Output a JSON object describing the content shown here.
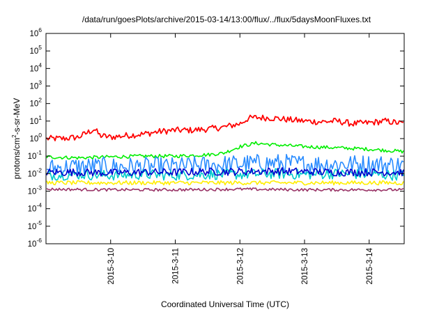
{
  "chart_data": {
    "type": "line",
    "title": "/data/run/goesPlots/archive/2015-03-14/13:00/flux/../flux/5daysMoonFluxes.txt",
    "xlabel": "Coordinated Universal Time (UTC)",
    "ylabel": "protons/cm²-s-sr-MeV",
    "ylabel_parts": {
      "pre": "protons/cm",
      "sup": "2",
      "post": "-s-sr-MeV"
    },
    "yscale": "log",
    "ylim": [
      1e-06,
      1000000.0
    ],
    "y_ticks": [
      {
        "value": 1e-06,
        "base": "10",
        "exp": "-6"
      },
      {
        "value": 1e-05,
        "base": "10",
        "exp": "-5"
      },
      {
        "value": 0.0001,
        "base": "10",
        "exp": "-4"
      },
      {
        "value": 0.001,
        "base": "10",
        "exp": "-3"
      },
      {
        "value": 0.01,
        "base": "10",
        "exp": "-2"
      },
      {
        "value": 0.1,
        "base": "10",
        "exp": "-1"
      },
      {
        "value": 1,
        "base": "10",
        "exp": "0"
      },
      {
        "value": 10,
        "base": "10",
        "exp": "1"
      },
      {
        "value": 100,
        "base": "10",
        "exp": "2"
      },
      {
        "value": 1000,
        "base": "10",
        "exp": "3"
      },
      {
        "value": 10000,
        "base": "10",
        "exp": "4"
      },
      {
        "value": 100000,
        "base": "10",
        "exp": "5"
      },
      {
        "value": 1000000,
        "base": "10",
        "exp": "6"
      }
    ],
    "xlim": [
      "2015-03-09 00:00",
      "2015-03-14 13:00"
    ],
    "x_ticks": [
      "2015-3-10",
      "2015-3-11",
      "2015-3-12",
      "2015-3-13",
      "2015-3-14"
    ],
    "grid": false,
    "legend": "none",
    "series": [
      {
        "color": "#ff0000",
        "x": [
          "03-09 00:00",
          "03-09 06:00",
          "03-09 12:00",
          "03-09 18:00",
          "03-09 20:00",
          "03-10 00:00",
          "03-10 06:00",
          "03-10 12:00",
          "03-10 18:00",
          "03-11 00:00",
          "03-11 06:00",
          "03-11 12:00",
          "03-11 18:00",
          "03-12 00:00",
          "03-12 03:00",
          "03-12 06:00",
          "03-12 12:00",
          "03-12 18:00",
          "03-13 00:00",
          "03-13 06:00",
          "03-13 12:00",
          "03-13 18:00",
          "03-14 00:00",
          "03-14 06:00",
          "03-14 13:00"
        ],
        "y": [
          1.0,
          1.0,
          1.2,
          3.5,
          1.5,
          1.2,
          1.5,
          1.8,
          2.5,
          3.0,
          3.0,
          3.5,
          4.5,
          7.0,
          14,
          16,
          15,
          12,
          10,
          9,
          10,
          7,
          8,
          10,
          7
        ]
      },
      {
        "color": "#00ee00",
        "x": [
          "03-09 00:00",
          "03-09 12:00",
          "03-10 00:00",
          "03-10 12:00",
          "03-11 00:00",
          "03-11 12:00",
          "03-11 18:00",
          "03-12 00:00",
          "03-12 06:00",
          "03-12 12:00",
          "03-13 00:00",
          "03-13 12:00",
          "03-14 00:00",
          "03-14 13:00"
        ],
        "y": [
          0.09,
          0.08,
          0.09,
          0.1,
          0.1,
          0.12,
          0.15,
          0.35,
          0.55,
          0.45,
          0.35,
          0.3,
          0.25,
          0.18
        ]
      },
      {
        "color": "#2a8cff",
        "x": [
          "03-09 00:00",
          "03-09 12:00",
          "03-10 00:00",
          "03-10 12:00",
          "03-11 00:00",
          "03-11 12:00",
          "03-12 00:00",
          "03-12 12:00",
          "03-13 00:00",
          "03-13 12:00",
          "03-14 00:00",
          "03-14 13:00"
        ],
        "y": [
          0.02,
          0.025,
          0.025,
          0.025,
          0.025,
          0.03,
          0.035,
          0.04,
          0.035,
          0.035,
          0.035,
          0.03
        ]
      },
      {
        "color": "#00cccc",
        "x": [
          "03-09 00:00",
          "03-09 12:00",
          "03-10 00:00",
          "03-10 12:00",
          "03-11 00:00",
          "03-11 12:00",
          "03-12 00:00",
          "03-12 12:00",
          "03-13 00:00",
          "03-13 12:00",
          "03-14 00:00",
          "03-14 13:00"
        ],
        "y": [
          0.008,
          0.009,
          0.008,
          0.009,
          0.008,
          0.009,
          0.009,
          0.01,
          0.009,
          0.01,
          0.009,
          0.008
        ]
      },
      {
        "color": "#0000cc",
        "x": [
          "03-09 00:00",
          "03-09 12:00",
          "03-10 00:00",
          "03-10 12:00",
          "03-11 00:00",
          "03-11 12:00",
          "03-12 00:00",
          "03-12 12:00",
          "03-13 00:00",
          "03-13 12:00",
          "03-14 00:00",
          "03-14 13:00"
        ],
        "y": [
          0.012,
          0.012,
          0.011,
          0.012,
          0.012,
          0.013,
          0.013,
          0.014,
          0.013,
          0.012,
          0.012,
          0.012
        ]
      },
      {
        "color": "#ffee00",
        "x": [
          "03-09 00:00",
          "03-10 00:00",
          "03-11 00:00",
          "03-12 00:00",
          "03-13 00:00",
          "03-14 00:00",
          "03-14 13:00"
        ],
        "y": [
          0.003,
          0.003,
          0.003,
          0.003,
          0.003,
          0.003,
          0.003
        ]
      },
      {
        "color": "#993366",
        "x": [
          "03-09 00:00",
          "03-10 00:00",
          "03-11 00:00",
          "03-12 00:00",
          "03-13 00:00",
          "03-14 00:00",
          "03-14 13:00"
        ],
        "y": [
          0.0013,
          0.0012,
          0.0012,
          0.0013,
          0.0012,
          0.0012,
          0.0012
        ]
      }
    ]
  }
}
